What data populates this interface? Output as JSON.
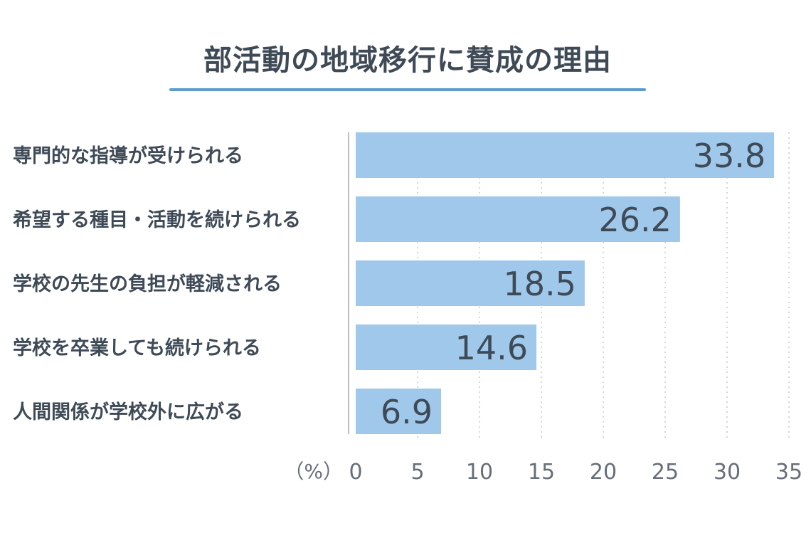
{
  "chart_data": {
    "type": "bar",
    "orientation": "horizontal",
    "title": "部活動の地域移行に賛成の理由",
    "categories": [
      "専門的な指導が受けられる",
      "希望する種目・活動を続けられる",
      "学校の先生の負担が軽減される",
      "学校を卒業しても続けられる",
      "人間関係が学校外に広がる"
    ],
    "values": [
      33.8,
      26.2,
      18.5,
      14.6,
      6.9
    ],
    "value_labels": [
      "33.8",
      "26.2",
      "18.5",
      "14.6",
      "6.9"
    ],
    "xlabel": "（%）",
    "ylabel": "",
    "xlim": [
      0,
      35
    ],
    "xticks": [
      0,
      5,
      10,
      15,
      20,
      25,
      30,
      35
    ],
    "grid": true,
    "colors": {
      "bar": "#a0c8eb",
      "text": "#3f4a57",
      "accent": "#5b9ccc",
      "grid": "#c8c8c8"
    }
  }
}
